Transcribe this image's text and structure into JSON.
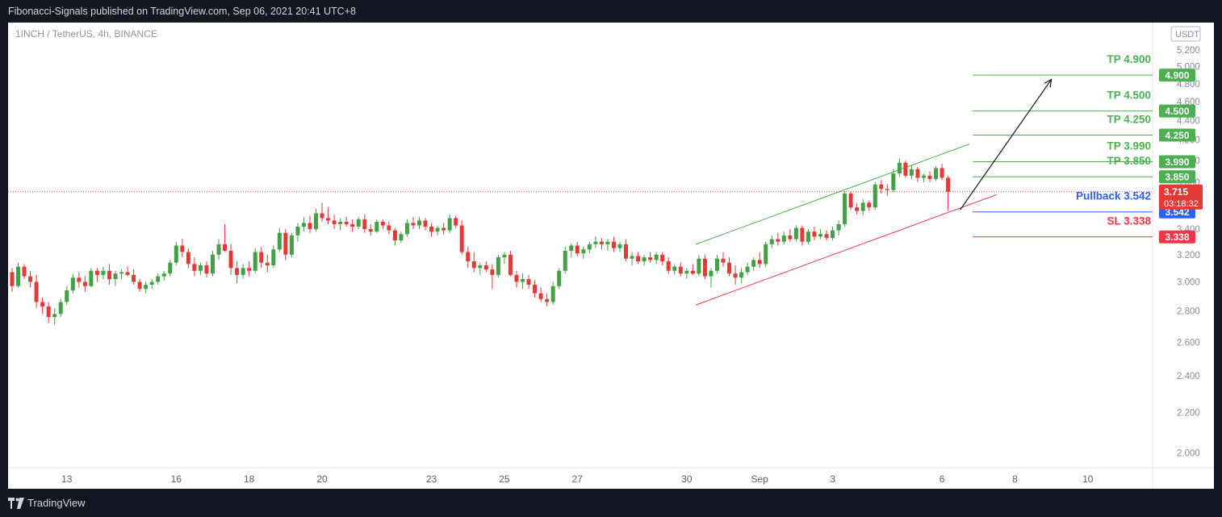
{
  "header": {
    "publish_text": "Fibonacci-Signals published on TradingView.com, Sep 06, 2021 20:41 UTC+8"
  },
  "chart_meta": {
    "symbol_text": "1INCH / TetherUS, 4h, BINANCE",
    "currency_badge": "USDT"
  },
  "footer": {
    "brand": "TradingView",
    "logo_icon": "tradingview-logo-icon"
  },
  "colors": {
    "up": "#43a047",
    "down": "#e53935",
    "green_line": "#4caf50",
    "red_line": "#f23645",
    "pullback": "#2962ff",
    "price_red": "#e53935",
    "grid_text": "#848c99"
  },
  "chart_data": {
    "type": "candlestick",
    "y_scale": "log",
    "ylim": [
      1.93,
      5.55
    ],
    "y_ticks": [
      "5.200",
      "5.000",
      "4.800",
      "4.600",
      "4.400",
      "4.200",
      "4.000",
      "3.800",
      "3.600",
      "3.400",
      "3.200",
      "3.000",
      "2.800",
      "2.600",
      "2.400",
      "2.200",
      "2.000"
    ],
    "y_tick_values": [
      5.2,
      5.0,
      4.8,
      4.6,
      4.4,
      4.2,
      4.0,
      3.8,
      3.6,
      3.4,
      3.2,
      3.0,
      2.8,
      2.6,
      2.4,
      2.2,
      2.0
    ],
    "x_ticks": [
      {
        "label": "13",
        "bar": 9
      },
      {
        "label": "16",
        "bar": 27
      },
      {
        "label": "18",
        "bar": 39
      },
      {
        "label": "20",
        "bar": 51
      },
      {
        "label": "23",
        "bar": 69
      },
      {
        "label": "25",
        "bar": 81
      },
      {
        "label": "27",
        "bar": 93
      },
      {
        "label": "30",
        "bar": 111
      },
      {
        "label": "Sep",
        "bar": 123
      },
      {
        "label": "3",
        "bar": 135
      },
      {
        "label": "6",
        "bar": 153
      },
      {
        "label": "8",
        "bar": 165
      },
      {
        "label": "10",
        "bar": 177
      }
    ],
    "bars": [
      [
        3.07,
        3.1,
        2.93,
        2.97
      ],
      [
        2.97,
        3.14,
        2.96,
        3.11
      ],
      [
        3.11,
        3.13,
        3.02,
        3.04
      ],
      [
        3.04,
        3.08,
        2.96,
        3.0
      ],
      [
        3.0,
        3.05,
        2.82,
        2.86
      ],
      [
        2.86,
        2.89,
        2.78,
        2.83
      ],
      [
        2.83,
        2.86,
        2.72,
        2.76
      ],
      [
        2.76,
        2.82,
        2.71,
        2.78
      ],
      [
        2.78,
        2.88,
        2.76,
        2.86
      ],
      [
        2.86,
        2.97,
        2.84,
        2.94
      ],
      [
        2.94,
        3.06,
        2.92,
        3.03
      ],
      [
        3.03,
        3.07,
        2.96,
        3.0
      ],
      [
        3.0,
        3.04,
        2.93,
        2.97
      ],
      [
        2.97,
        3.1,
        2.96,
        3.08
      ],
      [
        3.08,
        3.1,
        3.0,
        3.05
      ],
      [
        3.05,
        3.11,
        3.02,
        3.08
      ],
      [
        3.08,
        3.13,
        2.98,
        3.02
      ],
      [
        3.02,
        3.08,
        2.97,
        3.06
      ],
      [
        3.06,
        3.09,
        3.02,
        3.07
      ],
      [
        3.07,
        3.11,
        3.04,
        3.05
      ],
      [
        3.05,
        3.09,
        2.98,
        3.0
      ],
      [
        3.0,
        3.02,
        2.93,
        2.95
      ],
      [
        2.95,
        3.0,
        2.92,
        2.98
      ],
      [
        2.98,
        3.02,
        2.95,
        3.0
      ],
      [
        3.0,
        3.06,
        2.98,
        3.04
      ],
      [
        3.04,
        3.08,
        3.01,
        3.06
      ],
      [
        3.06,
        3.16,
        3.04,
        3.14
      ],
      [
        3.14,
        3.3,
        3.12,
        3.27
      ],
      [
        3.27,
        3.32,
        3.18,
        3.22
      ],
      [
        3.22,
        3.25,
        3.1,
        3.13
      ],
      [
        3.13,
        3.18,
        3.04,
        3.08
      ],
      [
        3.08,
        3.14,
        3.05,
        3.12
      ],
      [
        3.12,
        3.15,
        3.03,
        3.06
      ],
      [
        3.06,
        3.23,
        3.04,
        3.2
      ],
      [
        3.2,
        3.32,
        3.16,
        3.28
      ],
      [
        3.28,
        3.44,
        3.22,
        3.23
      ],
      [
        3.23,
        3.28,
        3.05,
        3.1
      ],
      [
        3.1,
        3.15,
        2.99,
        3.05
      ],
      [
        3.05,
        3.13,
        3.02,
        3.1
      ],
      [
        3.1,
        3.15,
        3.04,
        3.08
      ],
      [
        3.08,
        3.25,
        3.06,
        3.22
      ],
      [
        3.22,
        3.26,
        3.1,
        3.14
      ],
      [
        3.14,
        3.2,
        3.07,
        3.12
      ],
      [
        3.12,
        3.27,
        3.1,
        3.24
      ],
      [
        3.24,
        3.41,
        3.22,
        3.37
      ],
      [
        3.37,
        3.4,
        3.16,
        3.2
      ],
      [
        3.2,
        3.37,
        3.18,
        3.35
      ],
      [
        3.35,
        3.45,
        3.3,
        3.42
      ],
      [
        3.42,
        3.5,
        3.38,
        3.45
      ],
      [
        3.45,
        3.51,
        3.37,
        3.4
      ],
      [
        3.4,
        3.57,
        3.38,
        3.53
      ],
      [
        3.53,
        3.62,
        3.46,
        3.49
      ],
      [
        3.49,
        3.58,
        3.44,
        3.47
      ],
      [
        3.47,
        3.52,
        3.4,
        3.44
      ],
      [
        3.44,
        3.49,
        3.39,
        3.46
      ],
      [
        3.46,
        3.5,
        3.42,
        3.44
      ],
      [
        3.44,
        3.48,
        3.38,
        3.42
      ],
      [
        3.42,
        3.5,
        3.4,
        3.48
      ],
      [
        3.48,
        3.52,
        3.37,
        3.4
      ],
      [
        3.4,
        3.44,
        3.35,
        3.38
      ],
      [
        3.38,
        3.48,
        3.37,
        3.46
      ],
      [
        3.46,
        3.48,
        3.4,
        3.43
      ],
      [
        3.43,
        3.46,
        3.36,
        3.39
      ],
      [
        3.39,
        3.41,
        3.27,
        3.31
      ],
      [
        3.31,
        3.38,
        3.29,
        3.36
      ],
      [
        3.36,
        3.48,
        3.34,
        3.45
      ],
      [
        3.45,
        3.5,
        3.4,
        3.43
      ],
      [
        3.43,
        3.5,
        3.4,
        3.47
      ],
      [
        3.47,
        3.49,
        3.39,
        3.42
      ],
      [
        3.42,
        3.45,
        3.34,
        3.38
      ],
      [
        3.38,
        3.43,
        3.35,
        3.41
      ],
      [
        3.41,
        3.45,
        3.36,
        3.39
      ],
      [
        3.39,
        3.52,
        3.37,
        3.49
      ],
      [
        3.49,
        3.51,
        3.41,
        3.43
      ],
      [
        3.43,
        3.47,
        3.2,
        3.22
      ],
      [
        3.22,
        3.26,
        3.1,
        3.15
      ],
      [
        3.15,
        3.22,
        3.07,
        3.1
      ],
      [
        3.1,
        3.14,
        3.05,
        3.12
      ],
      [
        3.12,
        3.15,
        3.07,
        3.09
      ],
      [
        3.09,
        3.13,
        2.95,
        3.05
      ],
      [
        3.05,
        3.2,
        3.03,
        3.18
      ],
      [
        3.18,
        3.22,
        3.13,
        3.2
      ],
      [
        3.2,
        3.23,
        3.04,
        3.05
      ],
      [
        3.05,
        3.08,
        2.96,
        3.0
      ],
      [
        3.0,
        3.06,
        2.95,
        3.02
      ],
      [
        3.02,
        3.05,
        2.95,
        2.98
      ],
      [
        2.98,
        3.01,
        2.89,
        2.92
      ],
      [
        2.92,
        2.96,
        2.86,
        2.88
      ],
      [
        2.88,
        2.92,
        2.83,
        2.86
      ],
      [
        2.86,
        3.0,
        2.84,
        2.97
      ],
      [
        2.97,
        3.1,
        2.95,
        3.08
      ],
      [
        3.08,
        3.26,
        3.06,
        3.23
      ],
      [
        3.23,
        3.29,
        3.18,
        3.27
      ],
      [
        3.27,
        3.3,
        3.19,
        3.21
      ],
      [
        3.21,
        3.26,
        3.17,
        3.24
      ],
      [
        3.24,
        3.3,
        3.21,
        3.28
      ],
      [
        3.28,
        3.34,
        3.25,
        3.3
      ],
      [
        3.3,
        3.33,
        3.24,
        3.28
      ],
      [
        3.28,
        3.32,
        3.23,
        3.3
      ],
      [
        3.3,
        3.34,
        3.22,
        3.25
      ],
      [
        3.25,
        3.3,
        3.22,
        3.28
      ],
      [
        3.28,
        3.32,
        3.15,
        3.17
      ],
      [
        3.17,
        3.22,
        3.12,
        3.19
      ],
      [
        3.19,
        3.22,
        3.13,
        3.15
      ],
      [
        3.15,
        3.2,
        3.12,
        3.18
      ],
      [
        3.18,
        3.22,
        3.14,
        3.16
      ],
      [
        3.16,
        3.22,
        3.13,
        3.2
      ],
      [
        3.2,
        3.22,
        3.12,
        3.15
      ],
      [
        3.15,
        3.18,
        3.06,
        3.08
      ],
      [
        3.08,
        3.13,
        3.05,
        3.11
      ],
      [
        3.11,
        3.14,
        3.04,
        3.06
      ],
      [
        3.06,
        3.1,
        3.02,
        3.08
      ],
      [
        3.08,
        3.13,
        3.05,
        3.06
      ],
      [
        3.06,
        3.2,
        3.04,
        3.17
      ],
      [
        3.17,
        3.2,
        3.02,
        3.04
      ],
      [
        3.04,
        3.1,
        2.96,
        3.08
      ],
      [
        3.08,
        3.2,
        3.06,
        3.17
      ],
      [
        3.17,
        3.22,
        3.11,
        3.14
      ],
      [
        3.14,
        3.18,
        3.04,
        3.06
      ],
      [
        3.06,
        3.12,
        2.98,
        3.03
      ],
      [
        3.03,
        3.1,
        2.99,
        3.07
      ],
      [
        3.07,
        3.14,
        3.05,
        3.11
      ],
      [
        3.11,
        3.18,
        3.08,
        3.16
      ],
      [
        3.16,
        3.22,
        3.1,
        3.13
      ],
      [
        3.13,
        3.3,
        3.11,
        3.28
      ],
      [
        3.28,
        3.35,
        3.25,
        3.32
      ],
      [
        3.32,
        3.37,
        3.27,
        3.3
      ],
      [
        3.3,
        3.38,
        3.28,
        3.35
      ],
      [
        3.35,
        3.4,
        3.3,
        3.32
      ],
      [
        3.32,
        3.43,
        3.3,
        3.41
      ],
      [
        3.41,
        3.43,
        3.27,
        3.3
      ],
      [
        3.3,
        3.4,
        3.28,
        3.38
      ],
      [
        3.38,
        3.42,
        3.31,
        3.34
      ],
      [
        3.34,
        3.4,
        3.32,
        3.36
      ],
      [
        3.36,
        3.39,
        3.31,
        3.33
      ],
      [
        3.33,
        3.42,
        3.31,
        3.39
      ],
      [
        3.39,
        3.47,
        3.35,
        3.44
      ],
      [
        3.44,
        3.72,
        3.42,
        3.7
      ],
      [
        3.7,
        3.72,
        3.56,
        3.58
      ],
      [
        3.58,
        3.62,
        3.52,
        3.55
      ],
      [
        3.55,
        3.65,
        3.51,
        3.62
      ],
      [
        3.62,
        3.64,
        3.55,
        3.58
      ],
      [
        3.58,
        3.8,
        3.56,
        3.78
      ],
      [
        3.78,
        3.82,
        3.7,
        3.74
      ],
      [
        3.74,
        3.78,
        3.68,
        3.73
      ],
      [
        3.73,
        3.92,
        3.71,
        3.88
      ],
      [
        3.88,
        4.02,
        3.85,
        3.98
      ],
      [
        3.98,
        4.0,
        3.84,
        3.86
      ],
      [
        3.86,
        3.95,
        3.83,
        3.92
      ],
      [
        3.92,
        3.94,
        3.8,
        3.84
      ],
      [
        3.84,
        3.88,
        3.8,
        3.86
      ],
      [
        3.86,
        3.9,
        3.8,
        3.83
      ],
      [
        3.83,
        3.95,
        3.81,
        3.93
      ],
      [
        3.93,
        3.97,
        3.82,
        3.84
      ],
      [
        3.84,
        3.86,
        3.55,
        3.715
      ]
    ],
    "upper_channel": [
      [
        112.5,
        3.28
      ],
      [
        157.5,
        4.16
      ]
    ],
    "lower_channel": [
      [
        112.5,
        2.84
      ],
      [
        162,
        3.69
      ]
    ],
    "projection_arrow": [
      [
        156,
        3.56
      ],
      [
        171,
        4.85
      ]
    ],
    "current_price_line": 3.715,
    "level_lines": [
      {
        "value": 4.9,
        "color": "green",
        "label": "TP 4.900",
        "badge": "4.900"
      },
      {
        "value": 4.5,
        "color": "green",
        "label": "TP 4.500",
        "badge": "4.500"
      },
      {
        "value": 4.25,
        "color": "green",
        "label": "TP 4.250",
        "badge": "4.250"
      },
      {
        "value": 3.99,
        "color": "green",
        "label": "TP 3.990",
        "badge": "3.990"
      },
      {
        "value": 3.85,
        "color": "green",
        "label": "TP 3.850",
        "badge": "3.850"
      },
      {
        "value": 3.542,
        "color": "pullback",
        "label": "Pullback 3.542",
        "badge": "3.542"
      },
      {
        "value": 3.338,
        "color": "red",
        "label": "SL 3.338",
        "badge": "3.338"
      }
    ],
    "current_price_badge": "3.715",
    "countdown": "03:18:32"
  }
}
